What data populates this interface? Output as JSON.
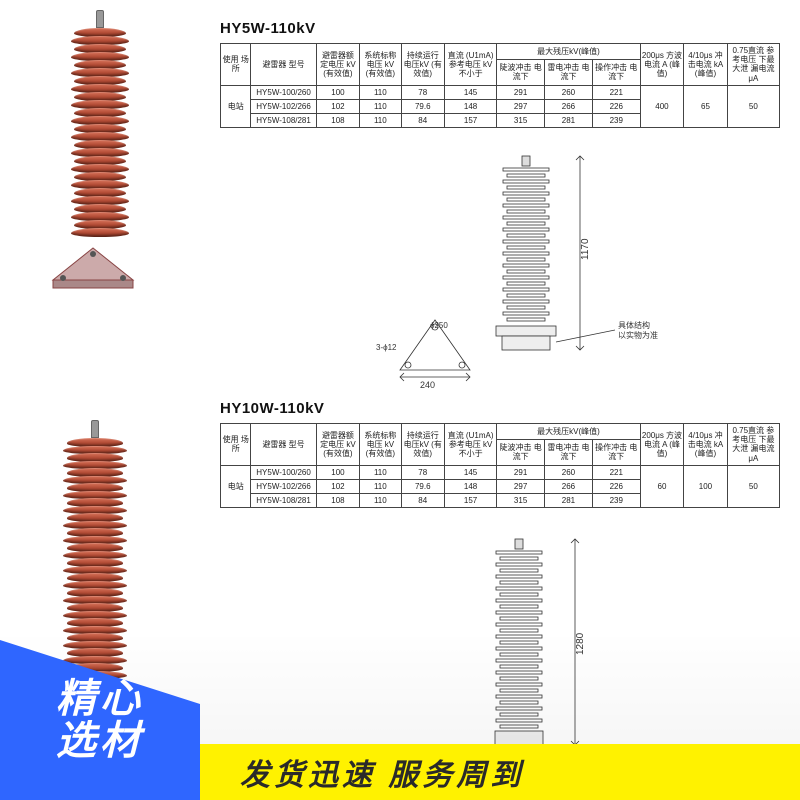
{
  "watermark": "",
  "banner": {
    "blue_line1": "精心",
    "blue_line2": "选材",
    "yellow": "发货迅速   服务周到"
  },
  "colors": {
    "insulator_top": "#d9735a",
    "insulator_mid": "#b04a34",
    "insulator_dark": "#7a2e1e",
    "table_border": "#444444",
    "banner_blue": "#2f66ff",
    "banner_yellow": "#fff200",
    "banner_yellow_text": "#2a2a2a"
  },
  "product1": {
    "title": "HY5W-110kV",
    "header": {
      "site": "使用\n场所",
      "model": "避雷器\n型号",
      "rated": "避雷器额\n定电压\nkV\n(有效值)",
      "sys": "系统标称\n电压\nkV\n(有效值)",
      "cont": "持续运行\n电压kV\n(有效值)",
      "dc": "直流\n(U1mA)\n参考电压\nkV不小于",
      "res_group": "最大残压kV(峰值)",
      "res_steep": "陡波冲击\n电流下",
      "res_light": "雷电冲击\n电流下",
      "res_op": "操作冲击\n电流下",
      "c200us": "200μs\n方波电流\nA\n(峰值)",
      "c410": "4/10μs\n冲击电流\nkA\n(峰值)",
      "leak": "0.75直流\n参考电压\n下最大泄\n漏电流μA"
    },
    "site": "电站",
    "rows": [
      {
        "model": "HY5W-100/260",
        "rated": "100",
        "sys": "110",
        "cont": "78",
        "dc": "145",
        "steep": "291",
        "light": "260",
        "op": "221"
      },
      {
        "model": "HY5W-102/266",
        "rated": "102",
        "sys": "110",
        "cont": "79.6",
        "dc": "148",
        "steep": "297",
        "light": "266",
        "op": "226"
      },
      {
        "model": "HY5W-108/281",
        "rated": "108",
        "sys": "110",
        "cont": "84",
        "dc": "157",
        "steep": "315",
        "light": "281",
        "op": "239"
      }
    ],
    "tail": {
      "c200us": "400",
      "c410": "65",
      "leak": "50"
    },
    "dwg": {
      "height_label": "1170",
      "base_width": "240",
      "bolt_circle": "ϕ250",
      "bolt_holes": "3-ϕ12",
      "note1": "具体结构",
      "note2": "以实物为准"
    }
  },
  "product2": {
    "title": "HY10W-110kV",
    "site": "电站",
    "rows": [
      {
        "model": "HY5W-100/260",
        "rated": "100",
        "sys": "110",
        "cont": "78",
        "dc": "145",
        "steep": "291",
        "light": "260",
        "op": "221"
      },
      {
        "model": "HY5W-102/266",
        "rated": "102",
        "sys": "110",
        "cont": "79.6",
        "dc": "148",
        "steep": "297",
        "light": "266",
        "op": "226"
      },
      {
        "model": "HY5W-108/281",
        "rated": "108",
        "sys": "110",
        "cont": "84",
        "dc": "157",
        "steep": "315",
        "light": "281",
        "op": "239"
      }
    ],
    "tail": {
      "c200us": "60",
      "c410": "100",
      "leak": "50"
    },
    "dwg": {
      "height_label": "1280"
    }
  }
}
